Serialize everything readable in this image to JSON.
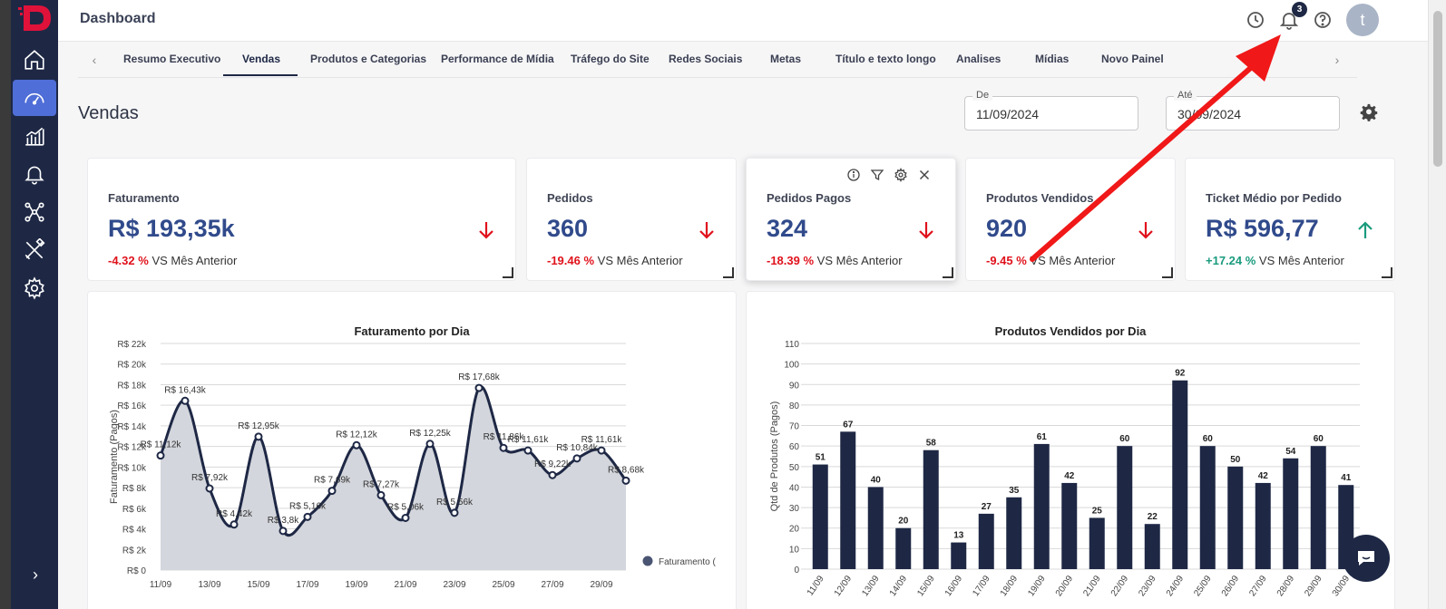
{
  "topbar": {
    "title": "Dashboard",
    "notification_count": "3",
    "avatar_letter": "t"
  },
  "tabs": [
    {
      "label": "Resumo Executivo"
    },
    {
      "label": "Vendas"
    },
    {
      "label": "Produtos e Categorias"
    },
    {
      "label": "Performance de Mídia"
    },
    {
      "label": "Tráfego do Site"
    },
    {
      "label": "Redes Sociais"
    },
    {
      "label": "Metas"
    },
    {
      "label": "Título e texto longo"
    },
    {
      "label": "Analises"
    },
    {
      "label": "Mídias"
    },
    {
      "label": "Novo Painel"
    }
  ],
  "section": {
    "title": "Vendas"
  },
  "date_range": {
    "from_label": "De",
    "from_value": "11/09/2024",
    "to_label": "Até",
    "to_value": "30/09/2024"
  },
  "kpis": [
    {
      "title": "Faturamento",
      "value": "R$ 193,35k",
      "pct": "-4.32 %",
      "compare": "VS Mês Anterior",
      "trend": "down"
    },
    {
      "title": "Pedidos",
      "value": "360",
      "pct": "-19.46 %",
      "compare": "VS Mês Anterior",
      "trend": "down"
    },
    {
      "title": "Pedidos Pagos",
      "value": "324",
      "pct": "-18.39 %",
      "compare": "VS Mês Anterior",
      "trend": "down"
    },
    {
      "title": "Produtos Vendidos",
      "value": "920",
      "pct": "-9.45 %",
      "compare": "VS Mês Anterior",
      "trend": "down"
    },
    {
      "title": "Ticket Médio por Pedido",
      "value": "R$ 596,77",
      "pct": "+17.24 %",
      "compare": "VS Mês Anterior",
      "trend": "up"
    }
  ],
  "colors": {
    "sidebar": "#1e2845",
    "accent": "#4f6ed7",
    "negative": "#e0121c",
    "positive": "#1a9b7e",
    "series": "#1e2845"
  },
  "chart_data": [
    {
      "type": "area",
      "title": "Faturamento por Dia",
      "ylabel": "Faturamento (Pagos)",
      "ylim": [
        0,
        22000
      ],
      "y_ticks": [
        "R$ 0",
        "R$ 2k",
        "R$ 4k",
        "R$ 6k",
        "R$ 8k",
        "R$ 10k",
        "R$ 12k",
        "R$ 14k",
        "R$ 16k",
        "R$ 18k",
        "R$ 20k",
        "R$ 22k"
      ],
      "x": [
        "11/09",
        "12/09",
        "13/09",
        "14/09",
        "15/09",
        "16/09",
        "17/09",
        "18/09",
        "19/09",
        "20/09",
        "21/09",
        "22/09",
        "23/09",
        "24/09",
        "25/09",
        "26/09",
        "27/09",
        "28/09",
        "29/09",
        "30/09"
      ],
      "x_tick_labels": [
        "11/09",
        "13/09",
        "15/09",
        "17/09",
        "19/09",
        "21/09",
        "23/09",
        "25/09",
        "27/09",
        "29/09"
      ],
      "values": [
        11120,
        16430,
        7920,
        4420,
        12950,
        3800,
        5160,
        7690,
        12120,
        7270,
        5060,
        12250,
        5560,
        17680,
        11860,
        11610,
        9220,
        10840,
        11610,
        8680
      ],
      "data_labels": [
        "R$ 11,12k",
        "R$ 16,43k",
        "R$ 7,92k",
        "R$ 4,42k",
        "R$ 12,95k",
        "R$ 3,8k",
        "R$ 5,16k",
        "R$ 7,69k",
        "R$ 12,12k",
        "R$ 7,27k",
        "R$ 5,06k",
        "R$ 12,25k",
        "R$ 5,56k",
        "R$ 17,68k",
        "R$ 11,86k",
        "R$ 11,61k",
        "R$ 9,22k",
        "R$ 10,84k",
        "R$ 11,61k",
        "R$ 8,68k"
      ],
      "legend": "Faturamento (",
      "legend_position": "right"
    },
    {
      "type": "bar",
      "title": "Produtos Vendidos por Dia",
      "ylabel": "Qtd de Produtos (Pagos)",
      "ylim": [
        0,
        110
      ],
      "y_ticks": [
        "0",
        "10",
        "20",
        "30",
        "40",
        "50",
        "60",
        "70",
        "80",
        "90",
        "100",
        "110"
      ],
      "categories": [
        "11/09",
        "12/09",
        "13/09",
        "14/09",
        "15/09",
        "16/09",
        "17/09",
        "18/09",
        "19/09",
        "20/09",
        "21/09",
        "22/09",
        "23/09",
        "24/09",
        "25/09",
        "26/09",
        "27/09",
        "28/09",
        "29/09",
        "30/09"
      ],
      "values": [
        51,
        67,
        40,
        20,
        58,
        13,
        27,
        35,
        61,
        42,
        25,
        60,
        22,
        92,
        60,
        50,
        42,
        54,
        60,
        41
      ]
    }
  ]
}
